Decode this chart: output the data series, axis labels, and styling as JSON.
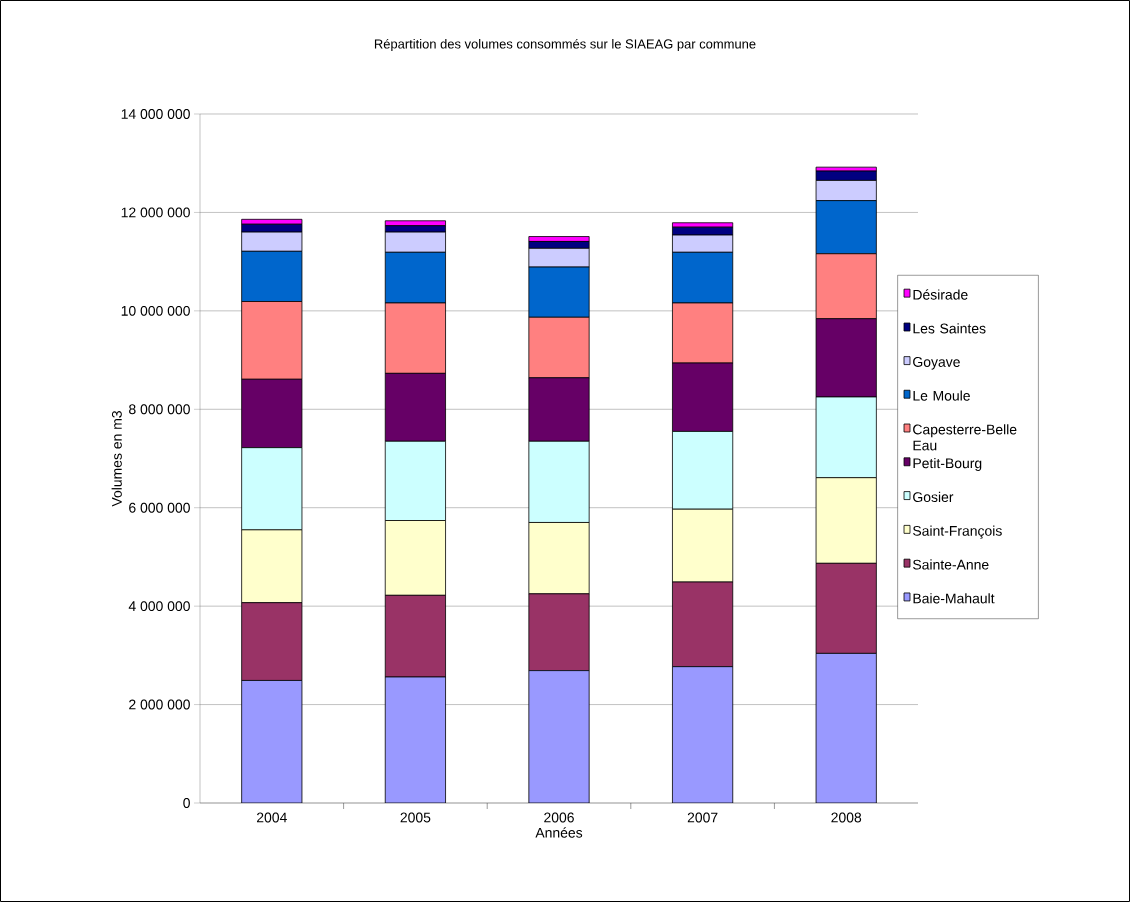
{
  "chart_data": {
    "type": "bar",
    "stacked": true,
    "title": "Répartition des volumes consommés sur le SIAEAG par commune",
    "xlabel": "Années",
    "ylabel": "Volumes en m3",
    "categories": [
      "2004",
      "2005",
      "2006",
      "2007",
      "2008"
    ],
    "ylim": [
      0,
      14000000
    ],
    "yticks": [
      {
        "value": 0,
        "label": "0"
      },
      {
        "value": 2000000,
        "label": "2 000 000"
      },
      {
        "value": 4000000,
        "label": "4 000 000"
      },
      {
        "value": 6000000,
        "label": "6 000 000"
      },
      {
        "value": 8000000,
        "label": "8 000 000"
      },
      {
        "value": 10000000,
        "label": "10 000 000"
      },
      {
        "value": 12000000,
        "label": "12 000 000"
      },
      {
        "value": 14000000,
        "label": "14 000 000"
      }
    ],
    "grid": "y",
    "legend": "right",
    "series": [
      {
        "name": "Baie-Mahault",
        "color": "#9999ff",
        "values": [
          2490000,
          2560000,
          2690000,
          2770000,
          3040000
        ]
      },
      {
        "name": "Sainte-Anne",
        "color": "#993366",
        "values": [
          1580000,
          1660000,
          1560000,
          1720000,
          1830000
        ]
      },
      {
        "name": "Saint-François",
        "color": "#ffffcc",
        "values": [
          1480000,
          1520000,
          1450000,
          1480000,
          1740000
        ]
      },
      {
        "name": "Gosier",
        "color": "#ccffff",
        "values": [
          1670000,
          1610000,
          1650000,
          1580000,
          1640000
        ]
      },
      {
        "name": "Petit-Bourg",
        "color": "#660066",
        "values": [
          1390000,
          1380000,
          1290000,
          1390000,
          1590000
        ]
      },
      {
        "name": "Capesterre-Belle Eau",
        "color": "#ff8080",
        "values": [
          1580000,
          1430000,
          1230000,
          1220000,
          1320000
        ]
      },
      {
        "name": "Le Moule",
        "color": "#0066cc",
        "values": [
          1020000,
          1030000,
          1020000,
          1030000,
          1080000
        ]
      },
      {
        "name": "Goyave",
        "color": "#ccccff",
        "values": [
          390000,
          410000,
          380000,
          350000,
          410000
        ]
      },
      {
        "name": "Les Saintes",
        "color": "#000080",
        "values": [
          160000,
          130000,
          140000,
          160000,
          190000
        ]
      },
      {
        "name": "Désirade",
        "color": "#ff00ff",
        "values": [
          100000,
          100000,
          100000,
          90000,
          80000
        ]
      }
    ]
  }
}
